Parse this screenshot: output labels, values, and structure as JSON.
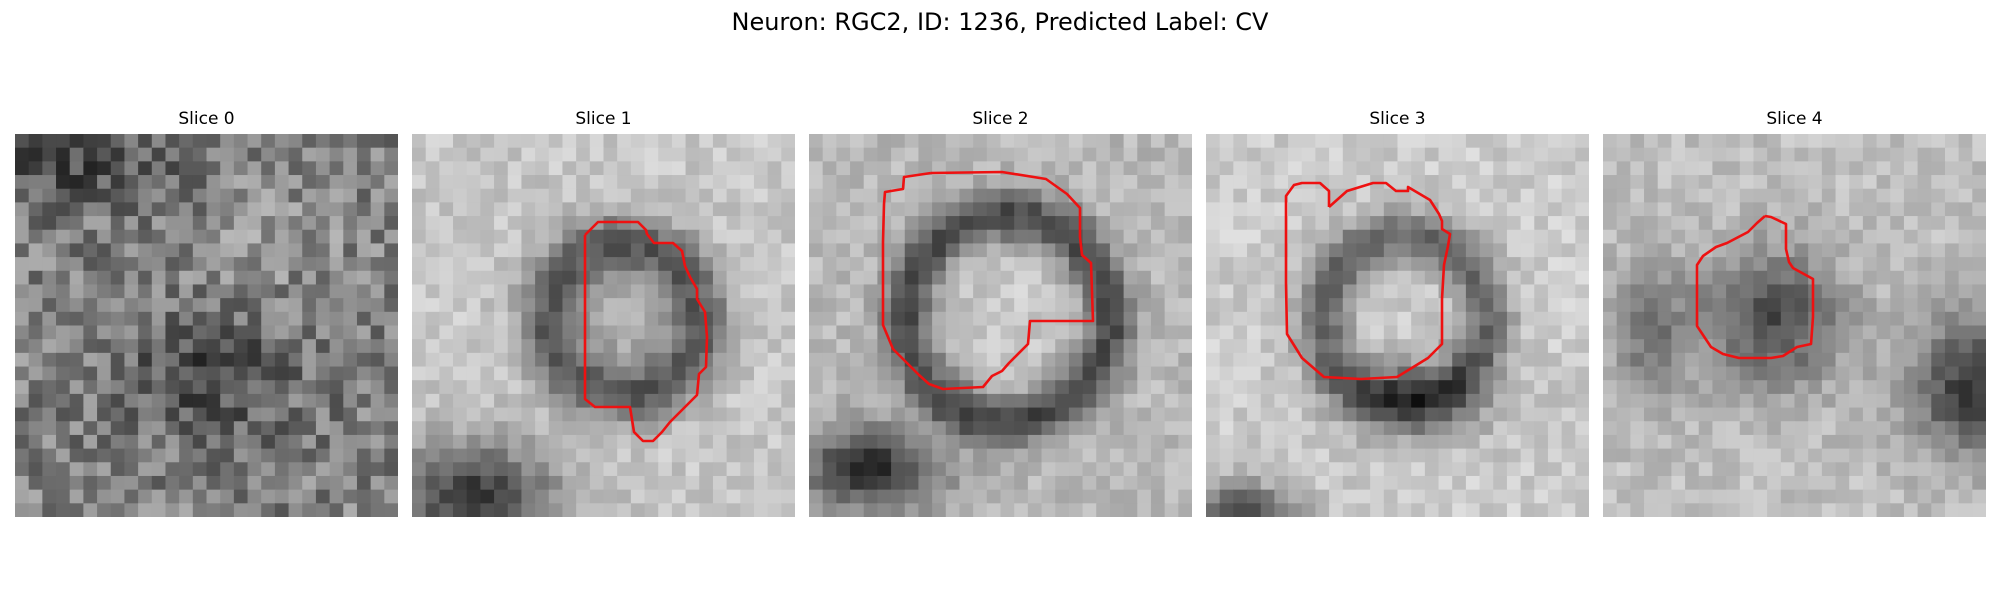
{
  "figure": {
    "suptitle": "Neuron: RGC2, ID: 1236, Predicted Label: CV"
  },
  "panels": [
    {
      "title": "Slice 0",
      "has_outline": false
    },
    {
      "title": "Slice 1",
      "has_outline": true
    },
    {
      "title": "Slice 2",
      "has_outline": true
    },
    {
      "title": "Slice 3",
      "has_outline": true
    },
    {
      "title": "Slice 4",
      "has_outline": true
    }
  ],
  "colors": {
    "outline": "#ee1111",
    "colormap": "gray"
  }
}
